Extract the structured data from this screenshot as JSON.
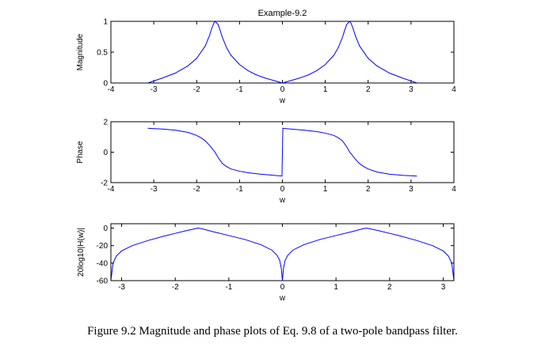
{
  "caption": "Figure 9.2 Magnitude and phase plots of Eq. 9.8 of a two-pole bandpass filter.",
  "chart_data": [
    {
      "type": "line",
      "title": "Example-9.2",
      "xlabel": "w",
      "ylabel": "Magnitude",
      "xlim": [
        -4,
        4
      ],
      "ylim": [
        0,
        1
      ],
      "xticks": [
        "-4",
        "-3",
        "-2",
        "-1",
        "0",
        "1",
        "2",
        "3",
        "4"
      ],
      "yticks": [
        "0",
        "0.5",
        "1"
      ],
      "grid": false,
      "line_color": "#0000ff",
      "series": [
        {
          "x": [
            -3.14,
            -2.8,
            -2.5,
            -2.2,
            -2.0,
            -1.8,
            -1.7,
            -1.65,
            -1.6,
            -1.57,
            -1.5,
            -1.45,
            -1.4,
            -1.3,
            -1.2,
            -1.0,
            -0.8,
            -0.6,
            -0.4,
            -0.2,
            0.0,
            0.2,
            0.4,
            0.6,
            0.8,
            1.0,
            1.2,
            1.3,
            1.4,
            1.45,
            1.5,
            1.57,
            1.6,
            1.65,
            1.7,
            1.8,
            2.0,
            2.2,
            2.5,
            2.8,
            3.14
          ],
          "y": [
            0.0,
            0.08,
            0.16,
            0.28,
            0.4,
            0.6,
            0.77,
            0.88,
            0.97,
            1.0,
            0.95,
            0.85,
            0.74,
            0.57,
            0.45,
            0.3,
            0.2,
            0.13,
            0.08,
            0.04,
            0.0,
            0.04,
            0.08,
            0.13,
            0.2,
            0.3,
            0.45,
            0.57,
            0.74,
            0.85,
            0.95,
            1.0,
            0.97,
            0.88,
            0.77,
            0.6,
            0.4,
            0.28,
            0.16,
            0.08,
            0.0
          ]
        }
      ]
    },
    {
      "type": "line",
      "title": "",
      "xlabel": "w",
      "ylabel": "Phase",
      "xlim": [
        -4,
        4
      ],
      "ylim": [
        -2,
        2
      ],
      "xticks": [
        "-4",
        "-3",
        "-2",
        "-1",
        "0",
        "1",
        "2",
        "3",
        "4"
      ],
      "yticks": [
        "-2",
        "0",
        "2"
      ],
      "grid": false,
      "line_color": "#0000ff",
      "series": [
        {
          "x": [
            -3.14,
            -2.8,
            -2.5,
            -2.2,
            -2.0,
            -1.9,
            -1.8,
            -1.7,
            -1.6,
            -1.57,
            -1.5,
            -1.4,
            -1.3,
            -1.2,
            -1.0,
            -0.8,
            -0.5,
            -0.2,
            -0.01,
            0.01,
            0.2,
            0.5,
            0.8,
            1.0,
            1.2,
            1.3,
            1.4,
            1.5,
            1.57,
            1.6,
            1.7,
            1.8,
            1.9,
            2.0,
            2.2,
            2.5,
            2.8,
            3.14
          ],
          "y": [
            1.57,
            1.52,
            1.45,
            1.3,
            1.1,
            0.95,
            0.75,
            0.45,
            0.1,
            0.0,
            -0.35,
            -0.75,
            -0.95,
            -1.1,
            -1.25,
            -1.35,
            -1.45,
            -1.52,
            -1.57,
            1.57,
            1.52,
            1.45,
            1.35,
            1.25,
            1.1,
            0.95,
            0.75,
            0.35,
            0.0,
            -0.1,
            -0.45,
            -0.75,
            -0.95,
            -1.1,
            -1.3,
            -1.45,
            -1.52,
            -1.57
          ]
        }
      ]
    },
    {
      "type": "line",
      "title": "",
      "xlabel": "w",
      "ylabel": "20log10|H(w)|",
      "xlim": [
        -3.2,
        3.2
      ],
      "ylim": [
        -60,
        5
      ],
      "xticks": [
        "-3",
        "-2",
        "-1",
        "0",
        "1",
        "2",
        "3"
      ],
      "yticks": [
        "0",
        "-20",
        "-40",
        "-60"
      ],
      "grid": false,
      "line_color": "#0000ff",
      "series": [
        {
          "x": [
            -3.2,
            -3.16,
            -3.1,
            -3.0,
            -2.8,
            -2.5,
            -2.2,
            -2.0,
            -1.8,
            -1.6,
            -1.57,
            -1.5,
            -1.3,
            -1.0,
            -0.7,
            -0.4,
            -0.2,
            -0.1,
            -0.05,
            -0.02,
            0.0,
            0.02,
            0.05,
            0.1,
            0.2,
            0.4,
            0.7,
            1.0,
            1.3,
            1.5,
            1.57,
            1.6,
            1.8,
            2.0,
            2.2,
            2.5,
            2.8,
            3.0,
            3.1,
            3.16,
            3.2
          ],
          "y": [
            -60,
            -40,
            -32,
            -26,
            -20,
            -14,
            -9,
            -6,
            -3,
            -0.3,
            0,
            -0.8,
            -4,
            -8.5,
            -13,
            -19,
            -25,
            -31,
            -37,
            -46,
            -60,
            -46,
            -37,
            -31,
            -25,
            -19,
            -13,
            -8.5,
            -4,
            -0.8,
            0,
            -0.3,
            -3,
            -6,
            -9,
            -14,
            -20,
            -26,
            -32,
            -40,
            -60
          ]
        }
      ]
    }
  ]
}
